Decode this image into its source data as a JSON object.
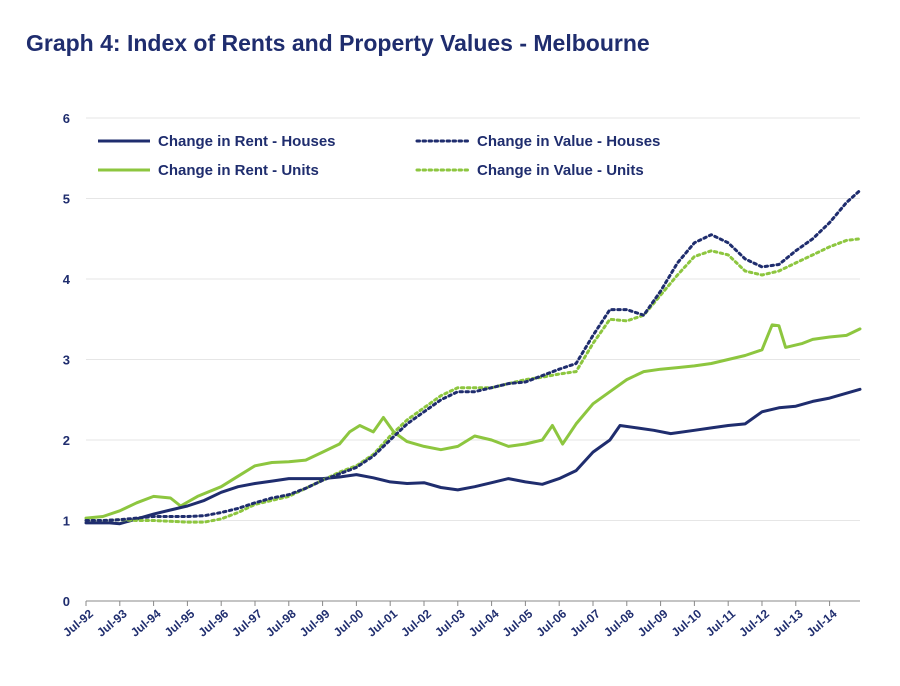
{
  "title": "Graph 4: Index of Rents and Property Values - Melbourne",
  "colors": {
    "navy": "#1f2d6e",
    "green": "#8dc63f",
    "grid": "#e6e6e6"
  },
  "chart_data": {
    "type": "line",
    "title": "Graph 4: Index of Rents and Property Values - Melbourne",
    "xlabel": "",
    "ylabel": "",
    "ylim": [
      0,
      6
    ],
    "yticks": [
      "0",
      "1",
      "2",
      "3",
      "4",
      "5",
      "6"
    ],
    "xlim": [
      1992.5,
      2015.4
    ],
    "xticks": [
      "Jul-92",
      "Jul-93",
      "Jul-94",
      "Jul-95",
      "Jul-96",
      "Jul-97",
      "Jul-98",
      "Jul-99",
      "Jul-00",
      "Jul-01",
      "Jul-02",
      "Jul-03",
      "Jul-04",
      "Jul-05",
      "Jul-06",
      "Jul-07",
      "Jul-08",
      "Jul-09",
      "Jul-10",
      "Jul-11",
      "Jul-12",
      "Jul-13",
      "Jul-14"
    ],
    "grid": true,
    "legend_position": "top-left",
    "series": [
      {
        "name": "Change in Rent - Houses",
        "style": "solid",
        "color": "#1f2d6e",
        "points": [
          [
            1992.5,
            0.97
          ],
          [
            1993.2,
            0.97
          ],
          [
            1993.5,
            0.96
          ],
          [
            1994.0,
            1.02
          ],
          [
            1994.5,
            1.08
          ],
          [
            1995.0,
            1.13
          ],
          [
            1995.5,
            1.18
          ],
          [
            1996.0,
            1.25
          ],
          [
            1996.5,
            1.35
          ],
          [
            1997.0,
            1.42
          ],
          [
            1997.5,
            1.46
          ],
          [
            1998.0,
            1.49
          ],
          [
            1998.5,
            1.52
          ],
          [
            1999.0,
            1.52
          ],
          [
            1999.5,
            1.52
          ],
          [
            2000.0,
            1.54
          ],
          [
            2000.5,
            1.57
          ],
          [
            2001.0,
            1.53
          ],
          [
            2001.5,
            1.48
          ],
          [
            2002.0,
            1.46
          ],
          [
            2002.5,
            1.47
          ],
          [
            2003.0,
            1.41
          ],
          [
            2003.5,
            1.38
          ],
          [
            2004.0,
            1.42
          ],
          [
            2004.5,
            1.47
          ],
          [
            2005.0,
            1.52
          ],
          [
            2005.5,
            1.48
          ],
          [
            2006.0,
            1.45
          ],
          [
            2006.5,
            1.52
          ],
          [
            2007.0,
            1.62
          ],
          [
            2007.5,
            1.85
          ],
          [
            2008.0,
            2.0
          ],
          [
            2008.3,
            2.18
          ],
          [
            2008.8,
            2.15
          ],
          [
            2009.3,
            2.12
          ],
          [
            2009.8,
            2.08
          ],
          [
            2010.5,
            2.12
          ],
          [
            2011.0,
            2.15
          ],
          [
            2011.5,
            2.18
          ],
          [
            2012.0,
            2.2
          ],
          [
            2012.5,
            2.35
          ],
          [
            2013.0,
            2.4
          ],
          [
            2013.5,
            2.42
          ],
          [
            2014.0,
            2.48
          ],
          [
            2014.5,
            2.52
          ],
          [
            2015.4,
            2.63
          ]
        ]
      },
      {
        "name": "Change in Rent - Units",
        "style": "solid",
        "color": "#8dc63f",
        "points": [
          [
            1992.5,
            1.03
          ],
          [
            1993.0,
            1.05
          ],
          [
            1993.5,
            1.12
          ],
          [
            1994.0,
            1.22
          ],
          [
            1994.5,
            1.3
          ],
          [
            1995.0,
            1.28
          ],
          [
            1995.3,
            1.18
          ],
          [
            1995.8,
            1.3
          ],
          [
            1996.5,
            1.42
          ],
          [
            1997.0,
            1.55
          ],
          [
            1997.5,
            1.68
          ],
          [
            1998.0,
            1.72
          ],
          [
            1998.5,
            1.73
          ],
          [
            1999.0,
            1.75
          ],
          [
            1999.5,
            1.85
          ],
          [
            2000.0,
            1.95
          ],
          [
            2000.3,
            2.1
          ],
          [
            2000.6,
            2.18
          ],
          [
            2001.0,
            2.1
          ],
          [
            2001.3,
            2.28
          ],
          [
            2001.6,
            2.1
          ],
          [
            2002.0,
            1.98
          ],
          [
            2002.5,
            1.92
          ],
          [
            2003.0,
            1.88
          ],
          [
            2003.5,
            1.92
          ],
          [
            2004.0,
            2.05
          ],
          [
            2004.5,
            2.0
          ],
          [
            2005.0,
            1.92
          ],
          [
            2005.5,
            1.95
          ],
          [
            2006.0,
            2.0
          ],
          [
            2006.3,
            2.18
          ],
          [
            2006.6,
            1.95
          ],
          [
            2007.0,
            2.2
          ],
          [
            2007.5,
            2.45
          ],
          [
            2008.0,
            2.6
          ],
          [
            2008.5,
            2.75
          ],
          [
            2009.0,
            2.85
          ],
          [
            2009.5,
            2.88
          ],
          [
            2010.0,
            2.9
          ],
          [
            2010.5,
            2.92
          ],
          [
            2011.0,
            2.95
          ],
          [
            2011.5,
            3.0
          ],
          [
            2012.0,
            3.05
          ],
          [
            2012.5,
            3.12
          ],
          [
            2012.8,
            3.43
          ],
          [
            2013.0,
            3.42
          ],
          [
            2013.2,
            3.15
          ],
          [
            2013.7,
            3.2
          ],
          [
            2014.0,
            3.25
          ],
          [
            2014.5,
            3.28
          ],
          [
            2015.0,
            3.3
          ],
          [
            2015.4,
            3.38
          ]
        ]
      },
      {
        "name": "Change in Value - Houses",
        "style": "dotted",
        "color": "#1f2d6e",
        "points": [
          [
            1992.5,
            1.0
          ],
          [
            1993.0,
            1.0
          ],
          [
            1993.5,
            1.01
          ],
          [
            1994.0,
            1.03
          ],
          [
            1994.5,
            1.05
          ],
          [
            1995.0,
            1.05
          ],
          [
            1995.5,
            1.05
          ],
          [
            1996.0,
            1.06
          ],
          [
            1996.5,
            1.1
          ],
          [
            1997.0,
            1.15
          ],
          [
            1997.5,
            1.22
          ],
          [
            1998.0,
            1.28
          ],
          [
            1998.5,
            1.32
          ],
          [
            1999.0,
            1.4
          ],
          [
            1999.5,
            1.5
          ],
          [
            2000.0,
            1.58
          ],
          [
            2000.5,
            1.66
          ],
          [
            2001.0,
            1.8
          ],
          [
            2001.5,
            2.0
          ],
          [
            2002.0,
            2.2
          ],
          [
            2002.5,
            2.35
          ],
          [
            2003.0,
            2.5
          ],
          [
            2003.5,
            2.6
          ],
          [
            2004.0,
            2.6
          ],
          [
            2004.5,
            2.65
          ],
          [
            2005.0,
            2.7
          ],
          [
            2005.5,
            2.72
          ],
          [
            2006.0,
            2.8
          ],
          [
            2006.5,
            2.88
          ],
          [
            2007.0,
            2.95
          ],
          [
            2007.5,
            3.3
          ],
          [
            2008.0,
            3.62
          ],
          [
            2008.5,
            3.62
          ],
          [
            2009.0,
            3.55
          ],
          [
            2009.5,
            3.85
          ],
          [
            2010.0,
            4.2
          ],
          [
            2010.5,
            4.45
          ],
          [
            2011.0,
            4.55
          ],
          [
            2011.5,
            4.45
          ],
          [
            2012.0,
            4.25
          ],
          [
            2012.5,
            4.15
          ],
          [
            2013.0,
            4.18
          ],
          [
            2013.5,
            4.35
          ],
          [
            2014.0,
            4.5
          ],
          [
            2014.5,
            4.7
          ],
          [
            2015.0,
            4.95
          ],
          [
            2015.4,
            5.1
          ]
        ]
      },
      {
        "name": "Change in Value - Units",
        "style": "dotted",
        "color": "#8dc63f",
        "points": [
          [
            1992.5,
            1.0
          ],
          [
            1993.0,
            1.0
          ],
          [
            1993.5,
            1.01
          ],
          [
            1994.0,
            1.0
          ],
          [
            1994.5,
            1.0
          ],
          [
            1995.0,
            0.99
          ],
          [
            1995.5,
            0.98
          ],
          [
            1996.0,
            0.98
          ],
          [
            1996.5,
            1.02
          ],
          [
            1997.0,
            1.1
          ],
          [
            1997.5,
            1.2
          ],
          [
            1998.0,
            1.25
          ],
          [
            1998.5,
            1.3
          ],
          [
            1999.0,
            1.4
          ],
          [
            1999.5,
            1.5
          ],
          [
            2000.0,
            1.6
          ],
          [
            2000.5,
            1.68
          ],
          [
            2001.0,
            1.82
          ],
          [
            2001.5,
            2.05
          ],
          [
            2002.0,
            2.25
          ],
          [
            2002.5,
            2.4
          ],
          [
            2003.0,
            2.55
          ],
          [
            2003.5,
            2.65
          ],
          [
            2004.0,
            2.65
          ],
          [
            2004.5,
            2.65
          ],
          [
            2005.0,
            2.7
          ],
          [
            2005.5,
            2.75
          ],
          [
            2006.0,
            2.78
          ],
          [
            2006.5,
            2.82
          ],
          [
            2007.0,
            2.85
          ],
          [
            2007.5,
            3.2
          ],
          [
            2008.0,
            3.5
          ],
          [
            2008.5,
            3.48
          ],
          [
            2009.0,
            3.55
          ],
          [
            2009.5,
            3.8
          ],
          [
            2010.0,
            4.05
          ],
          [
            2010.5,
            4.28
          ],
          [
            2011.0,
            4.35
          ],
          [
            2011.5,
            4.3
          ],
          [
            2012.0,
            4.1
          ],
          [
            2012.5,
            4.05
          ],
          [
            2013.0,
            4.1
          ],
          [
            2013.5,
            4.2
          ],
          [
            2014.0,
            4.3
          ],
          [
            2014.5,
            4.4
          ],
          [
            2015.0,
            4.48
          ],
          [
            2015.4,
            4.5
          ]
        ]
      }
    ]
  }
}
